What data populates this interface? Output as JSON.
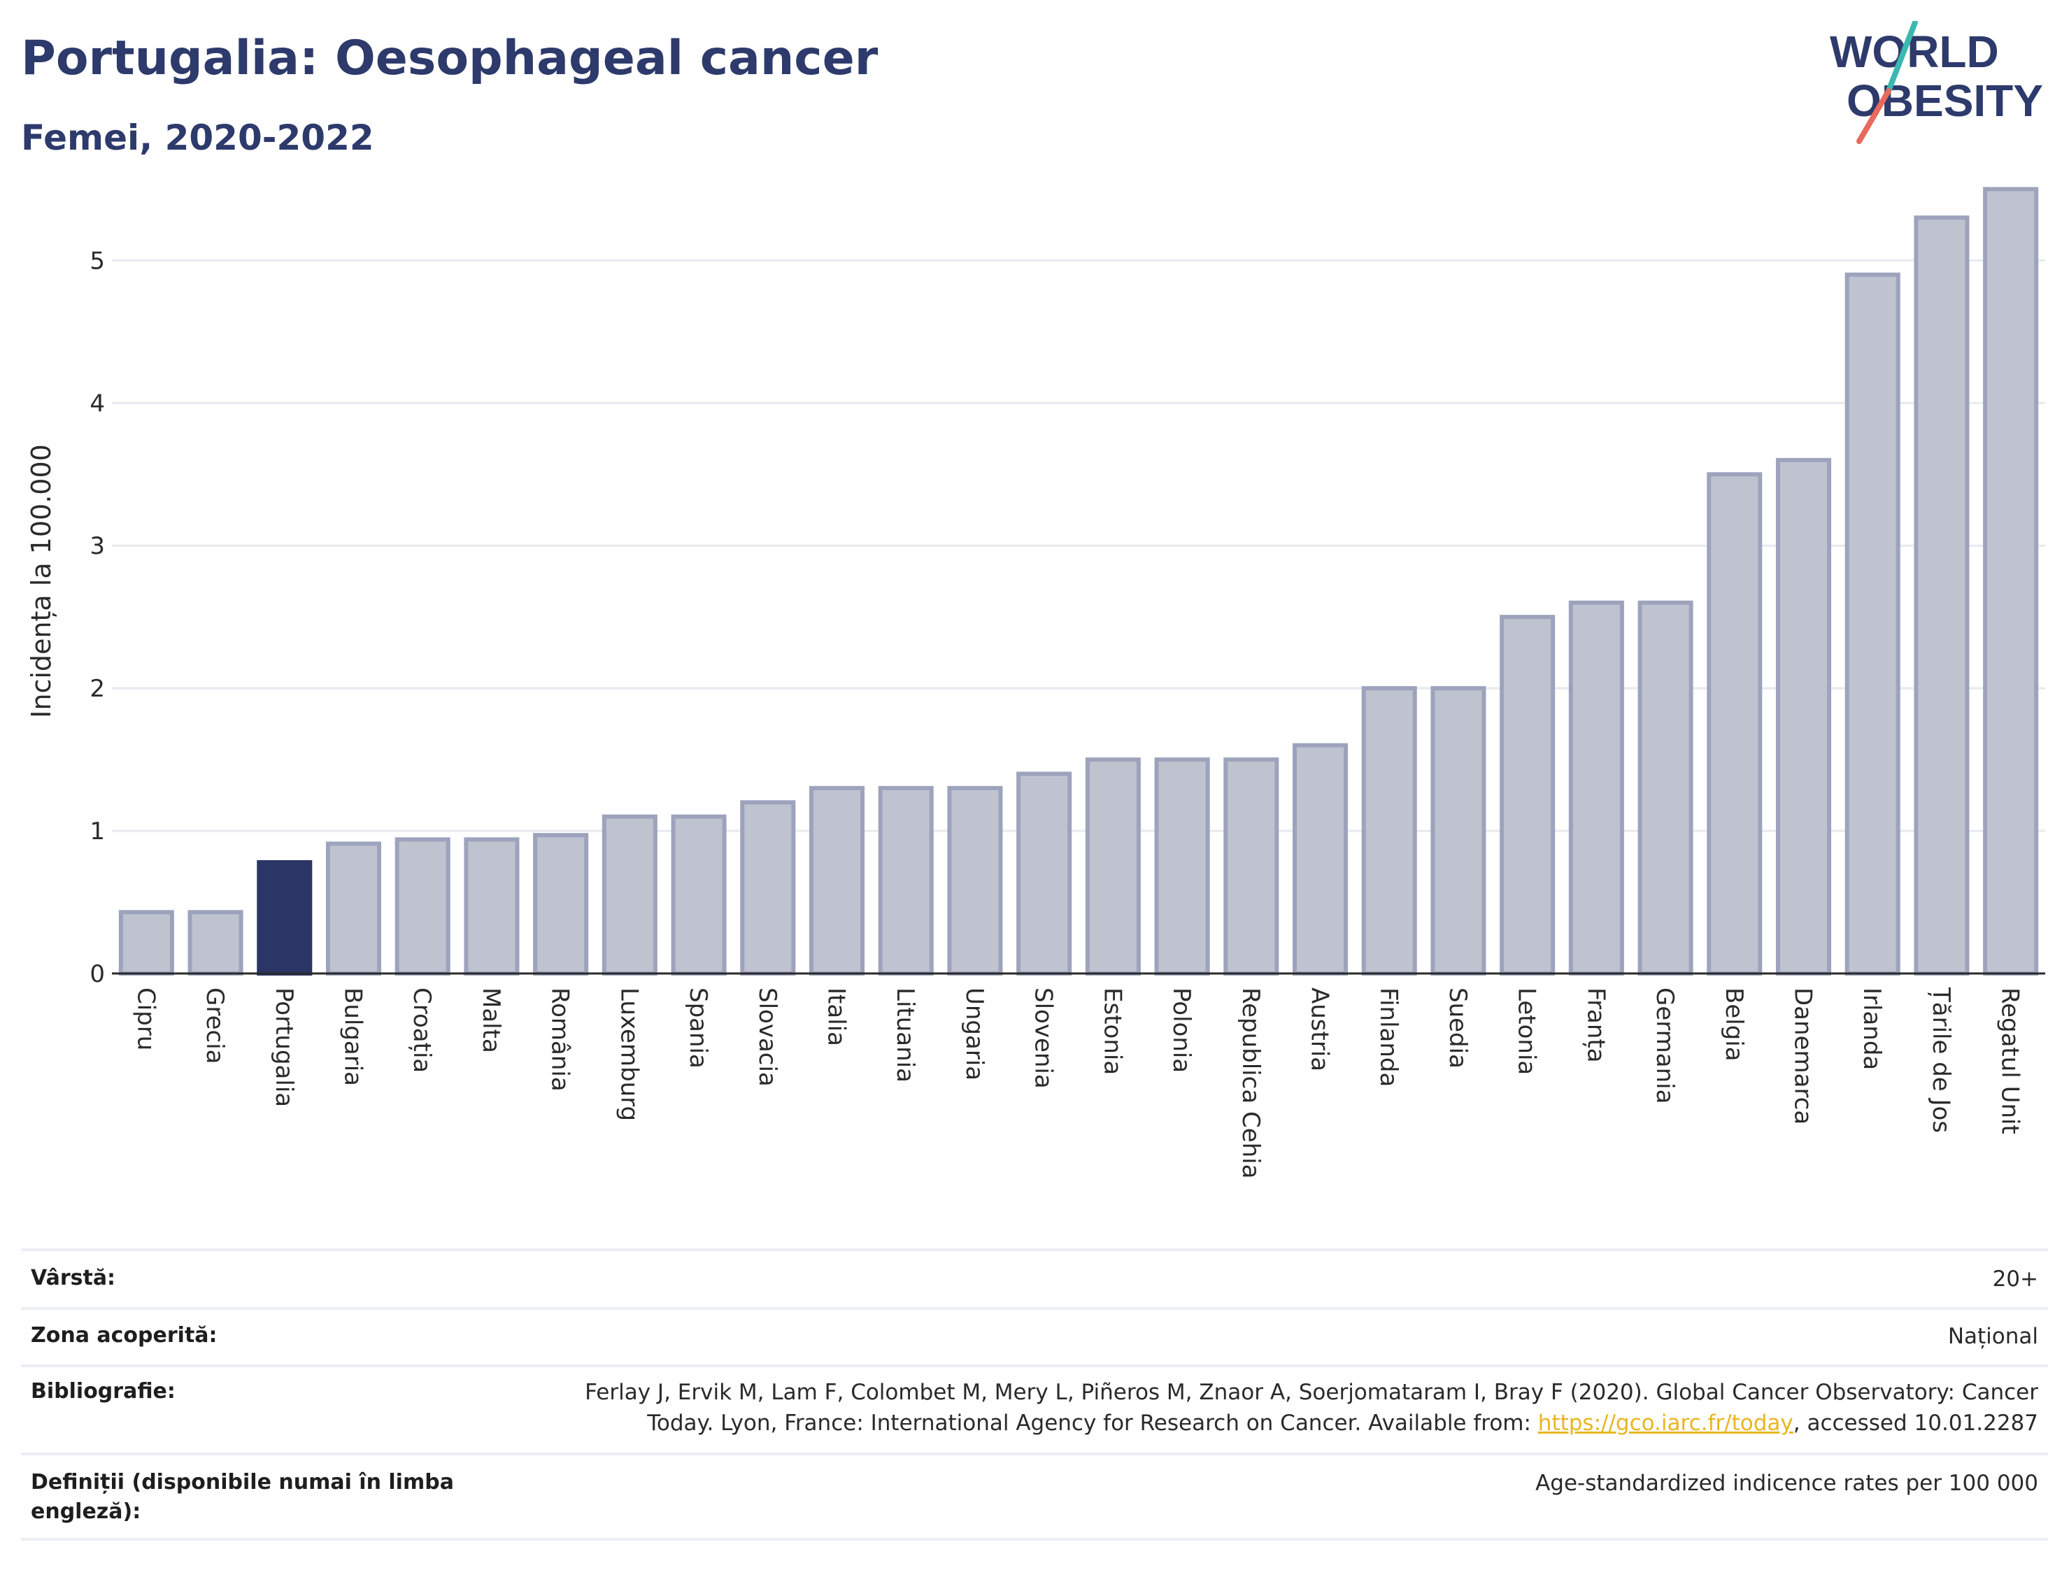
{
  "header": {
    "title": "Portugalia: Oesophageal cancer",
    "subtitle": "Femei, 2020-2022"
  },
  "logo": {
    "line1": "WORLD",
    "line2": "OBESITY"
  },
  "colors": {
    "highlight": "#2b3566",
    "bar_fill": "#bfc3d0",
    "bar_stroke": "#9da3bc",
    "grid": "#e7e9ee",
    "logo_teal": "#3bb8b0",
    "logo_red": "#e86a5c",
    "link": "#e8b61f"
  },
  "chart_data": {
    "type": "bar",
    "ylabel": "Incidența la 100.000",
    "ylim": [
      0,
      5.6
    ],
    "yticks": [
      0,
      1,
      2,
      3,
      4,
      5
    ],
    "highlight": "Portugalia",
    "categories": [
      "Cipru",
      "Grecia",
      "Portugalia",
      "Bulgaria",
      "Croația",
      "Malta",
      "România",
      "Luxemburg",
      "Spania",
      "Slovacia",
      "Italia",
      "Lituania",
      "Ungaria",
      "Slovenia",
      "Estonia",
      "Polonia",
      "Republica Cehia",
      "Austria",
      "Finlanda",
      "Suedia",
      "Letonia",
      "Franța",
      "Germania",
      "Belgia",
      "Danemarca",
      "Irlanda",
      "Țările de Jos",
      "Regatul Unit"
    ],
    "values": [
      0.43,
      0.43,
      0.78,
      0.91,
      0.94,
      0.94,
      0.97,
      1.1,
      1.1,
      1.2,
      1.3,
      1.3,
      1.3,
      1.4,
      1.5,
      1.5,
      1.5,
      1.6,
      2.0,
      2.0,
      2.5,
      2.6,
      2.6,
      3.5,
      3.6,
      4.9,
      5.3,
      5.5
    ]
  },
  "info": {
    "age_label": "Vârstă:",
    "age_value": "20+",
    "area_label": "Zona acoperită:",
    "area_value": "Național",
    "biblio_label": "Bibliografie:",
    "biblio_line1": "Ferlay J, Ervik M, Lam F, Colombet M, Mery L, Piñeros M, Znaor A, Soerjomataram I, Bray F (2020). Global Cancer Observatory: Cancer",
    "biblio_line2_pre": "Today. Lyon, France: International Agency for Research on Cancer. Available from: ",
    "biblio_link": "https://gco.iarc.fr/today",
    "biblio_line2_post": ", accessed 10.01.2287",
    "def_label": "Definiții (disponibile numai în limba engleză):",
    "def_value": "Age-standardized indicence rates per 100 000"
  }
}
